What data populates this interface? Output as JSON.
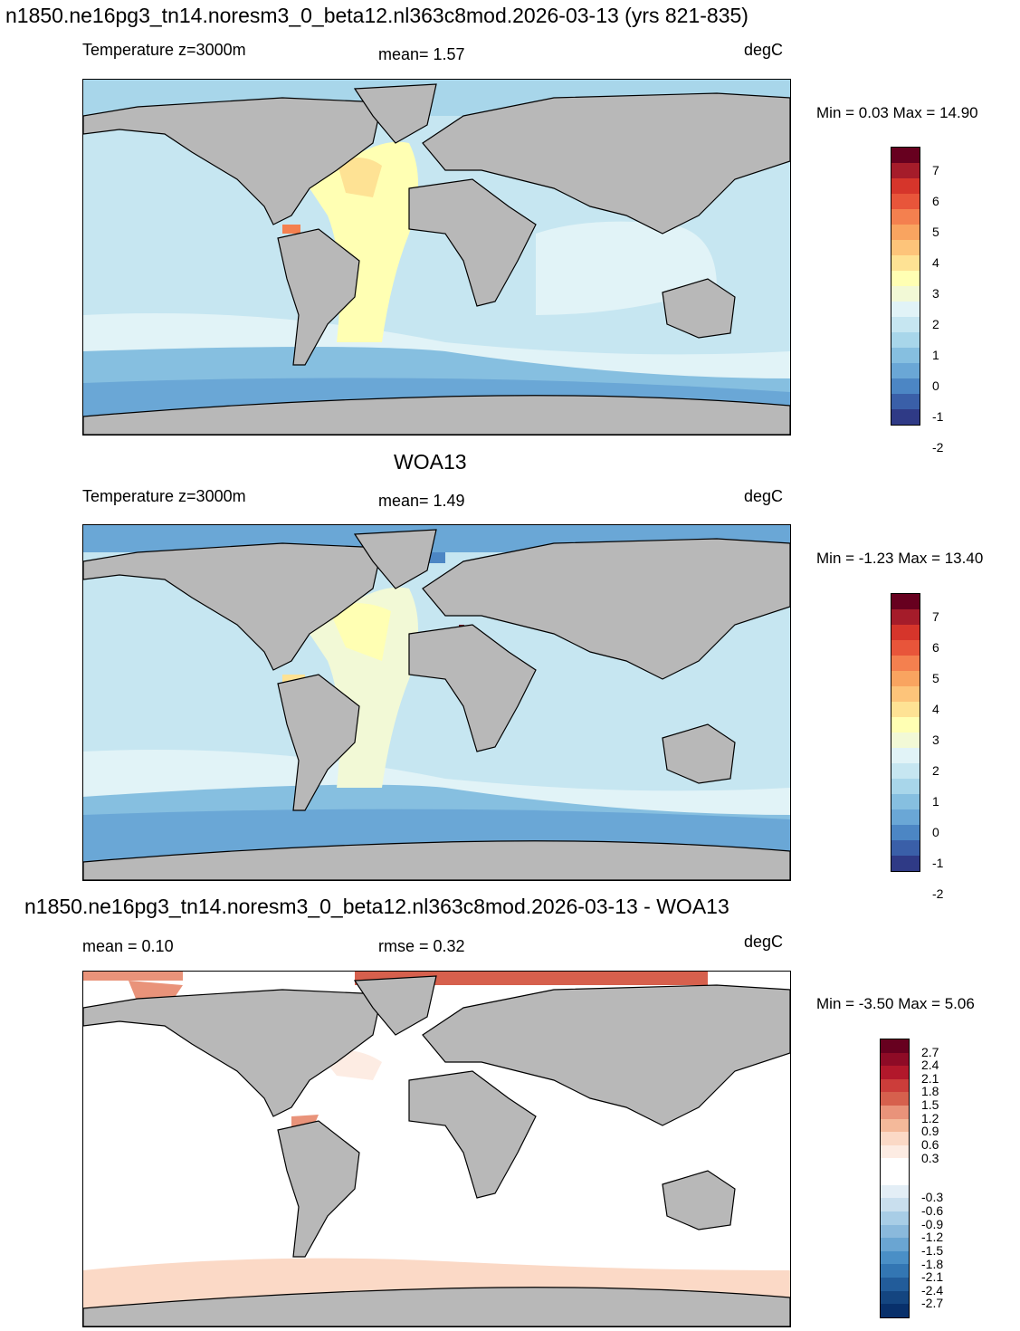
{
  "panel1": {
    "title": "n1850.ne16pg3_tn14.noresm3_0_beta12.nl363c8mod.2026-03-13 (yrs 821-835)",
    "left_label": "Temperature z=3000m",
    "mean_text": "mean=   1.57",
    "units": "degC",
    "minmax": "Min =   0.03 Max =  14.90"
  },
  "panel2": {
    "title": "WOA13",
    "left_label": "Temperature z=3000m",
    "mean_text": "mean=   1.49",
    "units": "degC",
    "minmax": "Min =  -1.23 Max =  13.40"
  },
  "panel3": {
    "title": "n1850.ne16pg3_tn14.noresm3_0_beta12.nl363c8mod.2026-03-13 - WOA13",
    "left_label": "mean =   0.10",
    "mean_text": "rmse =   0.32",
    "units": "degC",
    "minmax": "Min =  -3.50 Max =   5.06"
  },
  "temp_colorbar": {
    "colors": [
      "#67001f",
      "#a51c2a",
      "#d6352b",
      "#e8553a",
      "#f4804f",
      "#f9a460",
      "#fdc47a",
      "#fee294",
      "#ffffb3",
      "#f2f9d6",
      "#e1f3f7",
      "#c6e6f1",
      "#a8d6ea",
      "#86bfe0",
      "#6aa7d6",
      "#4c86c4",
      "#3a5fa8",
      "#2f3a86"
    ],
    "labels": [
      "7",
      "6",
      "5",
      "4",
      "3",
      "2",
      "1",
      "0",
      "-1",
      "-2"
    ]
  },
  "diff_colorbar": {
    "colors": [
      "#67001f",
      "#8e0b26",
      "#b2182b",
      "#cc3d3a",
      "#d6604d",
      "#e9937a",
      "#f4b99a",
      "#fbd9c6",
      "#fdece3",
      "#ffffff",
      "#ffffff",
      "#e3eef6",
      "#c9dfee",
      "#a8cde6",
      "#8ab9dc",
      "#6aa5d2",
      "#4a8fc6",
      "#3376b3",
      "#225c9a",
      "#144580",
      "#08306b"
    ],
    "labels": [
      "2.7",
      "2.4",
      "2.1",
      "1.8",
      "1.5",
      "1.2",
      "0.9",
      "0.6",
      "0.3",
      "-0.3",
      "-0.6",
      "-0.9",
      "-1.2",
      "-1.5",
      "-1.8",
      "-2.1",
      "-2.4",
      "-2.7"
    ]
  }
}
